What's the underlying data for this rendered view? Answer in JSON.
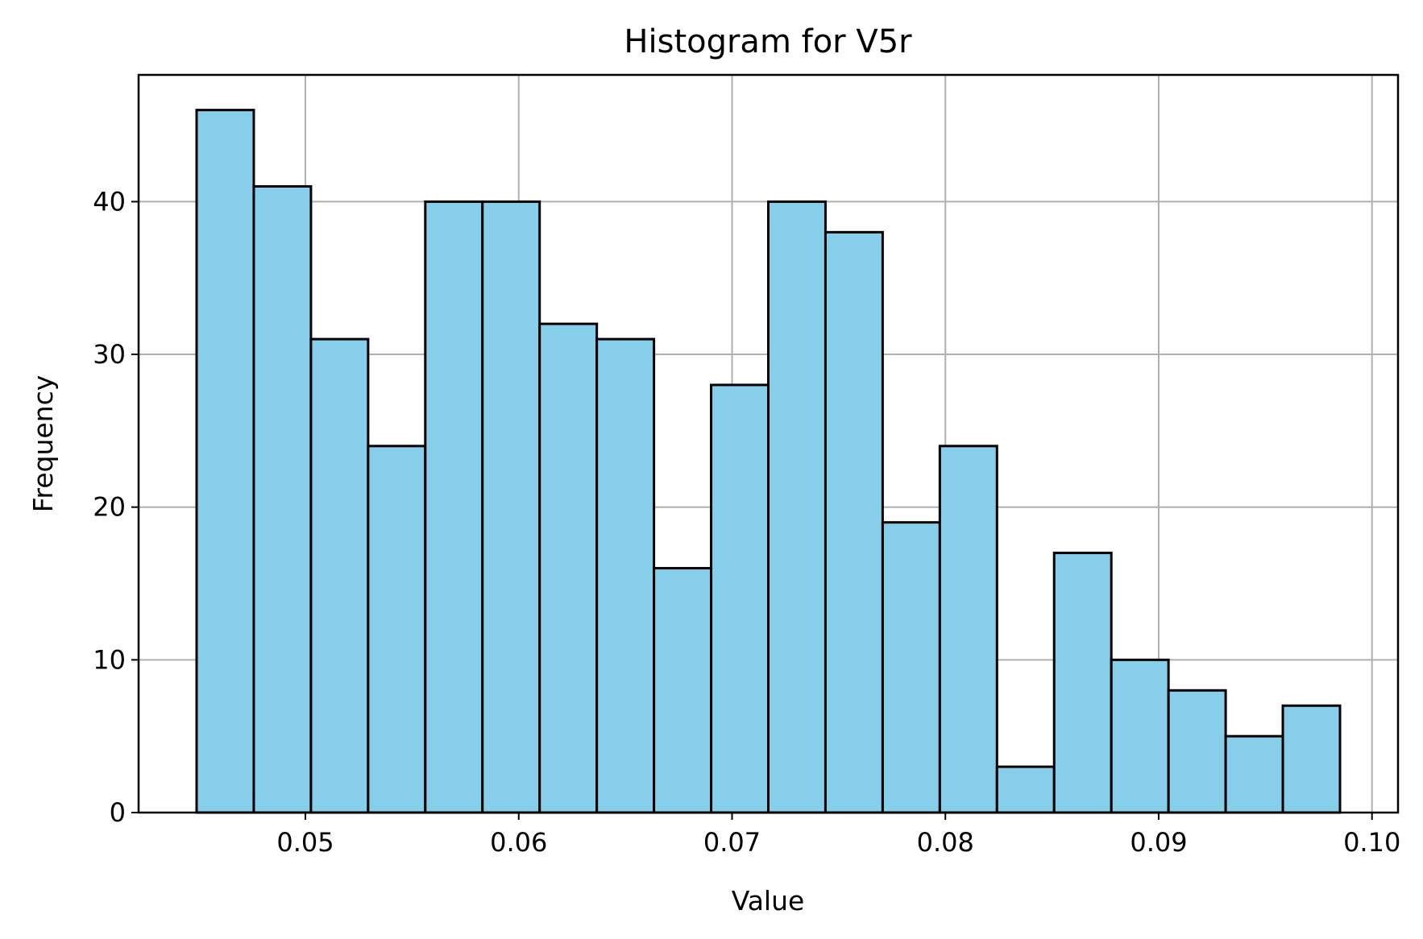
{
  "chart_data": {
    "type": "bar",
    "title": "Histogram for V5r",
    "xlabel": "Value",
    "ylabel": "Frequency",
    "bin_edges": [
      0.0449,
      0.04758,
      0.05026,
      0.05294,
      0.05562,
      0.0583,
      0.06098,
      0.06366,
      0.06634,
      0.06902,
      0.0717,
      0.07438,
      0.07706,
      0.07974,
      0.08242,
      0.0851,
      0.08778,
      0.09046,
      0.09314,
      0.09582,
      0.0985
    ],
    "values": [
      46,
      41,
      31,
      24,
      40,
      40,
      32,
      31,
      16,
      28,
      40,
      38,
      19,
      24,
      3,
      17,
      10,
      8,
      5,
      7
    ],
    "xlim": [
      0.04218,
      0.10122
    ],
    "ylim": [
      0,
      48.3
    ],
    "xticks": [
      0.05,
      0.06,
      0.07,
      0.08,
      0.09,
      0.1
    ],
    "xtick_labels": [
      "0.05",
      "0.06",
      "0.07",
      "0.08",
      "0.09",
      "0.10"
    ],
    "yticks": [
      0,
      10,
      20,
      30,
      40
    ],
    "ytick_labels": [
      "0",
      "10",
      "20",
      "30",
      "40"
    ],
    "grid": true,
    "bar_color": "#87CEEB",
    "edge_color": "#000000"
  }
}
